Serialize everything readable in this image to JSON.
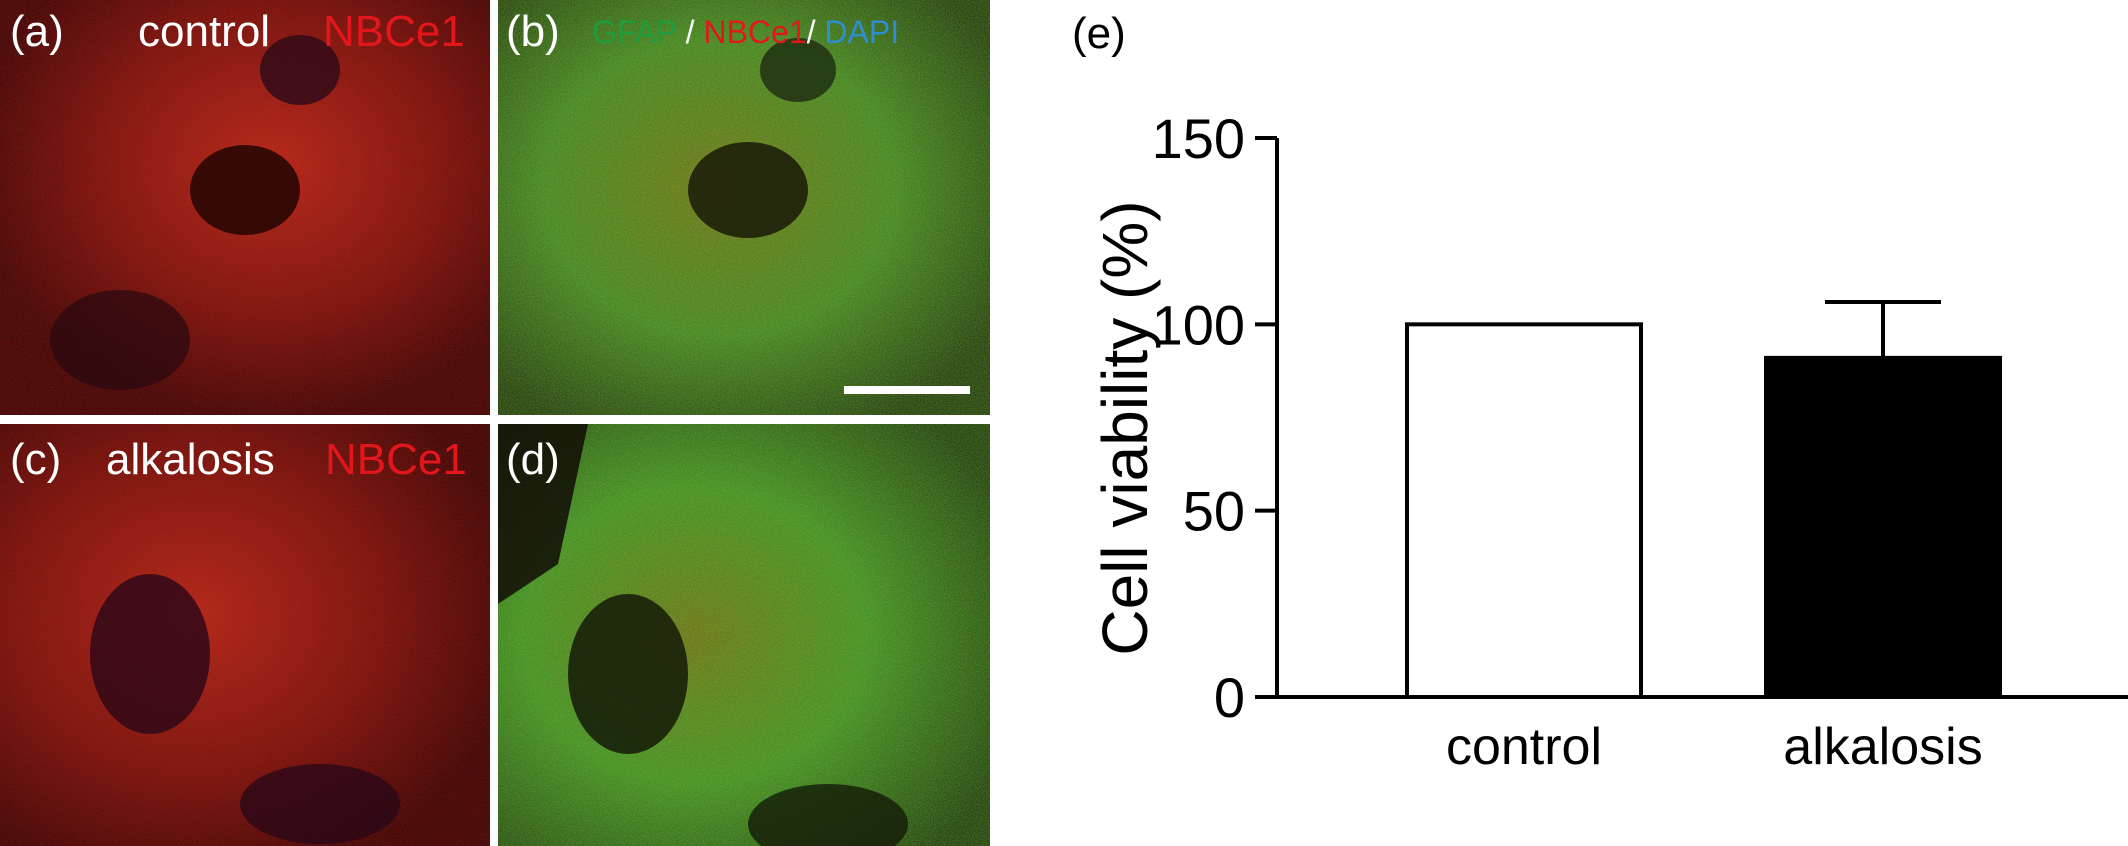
{
  "panels": {
    "a": {
      "letter": "(a)",
      "condition": "control",
      "stain": "NBCe1"
    },
    "b": {
      "letter": "(b)",
      "stain1": "GFAP",
      "sep1": " / ",
      "stain2": "NBCe1",
      "sep2": "/ ",
      "stain3": "DAPI"
    },
    "c": {
      "letter": "(c)",
      "condition": "alkalosis",
      "stain": "NBCe1"
    },
    "d": {
      "letter": "(d)"
    },
    "e": {
      "letter": "(e)"
    }
  },
  "colors": {
    "nbce1": "#e3171b",
    "gfap": "#1f9c3d",
    "dapi": "#2d8fd2"
  },
  "chart_data": {
    "type": "bar",
    "categories": [
      "control",
      "alkalosis"
    ],
    "values": [
      100,
      91
    ],
    "errors": [
      0,
      15
    ],
    "bar_fills": [
      "#ffffff",
      "#000000"
    ],
    "ylabel": "Cell viability (%)",
    "xlabel": "",
    "ylim": [
      0,
      150
    ],
    "yticks": [
      0,
      50,
      100,
      150
    ],
    "grid": false
  }
}
